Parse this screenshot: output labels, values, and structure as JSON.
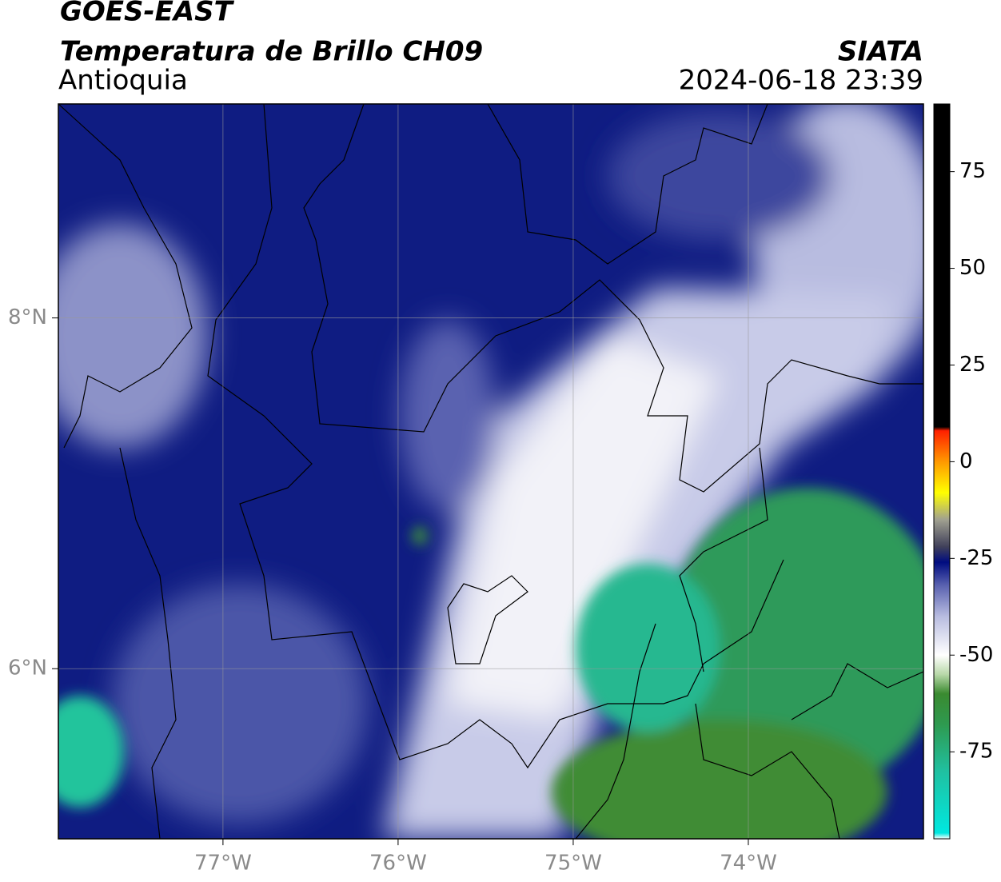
{
  "header": {
    "line1": "GOES-EAST",
    "line2": "Temperatura de Brillo CH09",
    "line3": "Antioquia",
    "agency": "SIATA",
    "timestamp": "2024-06-18 23:39"
  },
  "map": {
    "xlim": [
      -77.94,
      -73.0
    ],
    "ylim": [
      5.03,
      9.22
    ],
    "xticks": [
      {
        "value": -77,
        "label": "77°W"
      },
      {
        "value": -76,
        "label": "76°W"
      },
      {
        "value": -75,
        "label": "75°W"
      },
      {
        "value": -74,
        "label": "74°W"
      }
    ],
    "yticks": [
      {
        "value": 6,
        "label": "6°N"
      },
      {
        "value": 8,
        "label": "8°N"
      }
    ],
    "grid": true
  },
  "colorbar": {
    "lim": [
      -97.5,
      92.5
    ],
    "ticks": [
      75,
      50,
      25,
      0,
      -25,
      -50,
      -75
    ],
    "stops": [
      [
        -97.5,
        "#ffffff"
      ],
      [
        -96,
        "#00e8e0"
      ],
      [
        -80,
        "#20c0a0"
      ],
      [
        -68,
        "#2e9a50"
      ],
      [
        -60,
        "#3a8a30"
      ],
      [
        -55,
        "#b8d8a8"
      ],
      [
        -50,
        "#ffffff"
      ],
      [
        -40,
        "#b8bce0"
      ],
      [
        -32,
        "#5a62b0"
      ],
      [
        -26,
        "#000c80"
      ],
      [
        -22,
        "#40405a"
      ],
      [
        -15,
        "#a0a090"
      ],
      [
        -8,
        "#ffff00"
      ],
      [
        0,
        "#ff9900"
      ],
      [
        8,
        "#ff2000"
      ],
      [
        9,
        "#000000"
      ],
      [
        92.5,
        "#000000"
      ]
    ]
  }
}
